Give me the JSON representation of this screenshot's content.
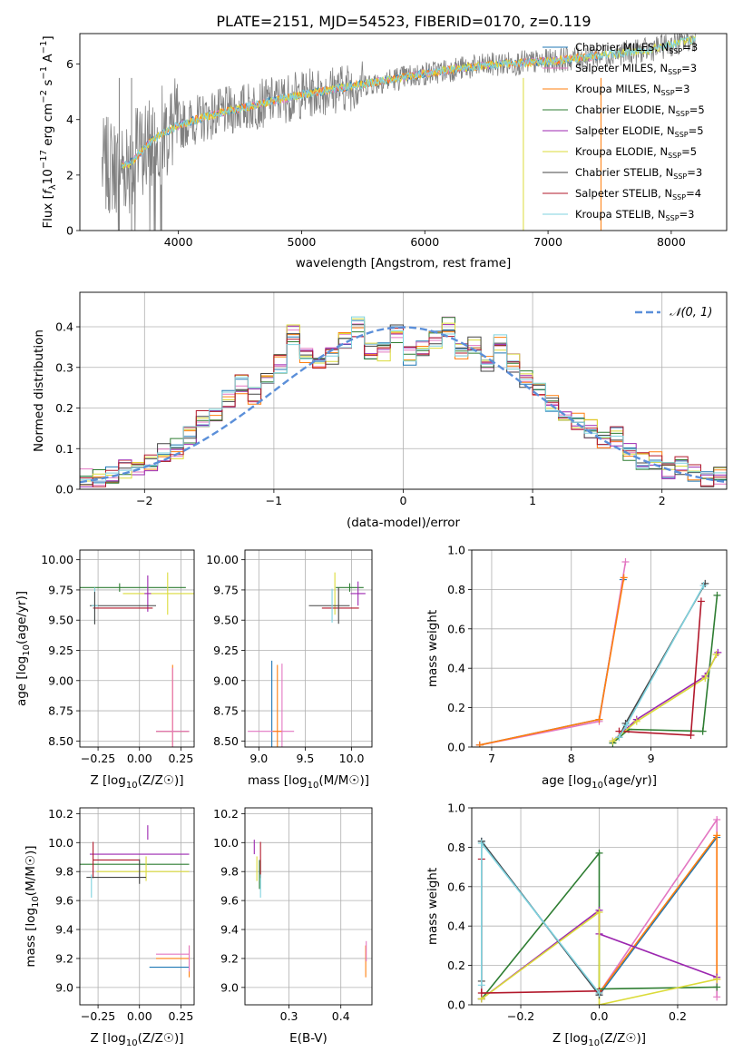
{
  "figure_title": "PLATE=2151, MJD=54523, FIBERID=0170, z=0.119",
  "colors": {
    "chabrier_miles": "#1f77b4",
    "salpeter_miles": "#e377c2",
    "kroupa_miles": "#ff7f0e",
    "chabrier_elodie": "#2e7d32",
    "salpeter_elodie": "#9c27b0",
    "kroupa_elodie": "#dbdb3a",
    "chabrier_stelib": "#444444",
    "salpeter_stelib": "#b2182b",
    "kroupa_stelib": "#7fd3df",
    "data": "#808080",
    "normal": "#5b8fd9"
  },
  "chart_data": [
    {
      "id": "spectrum",
      "type": "line",
      "title": "PLATE=2151, MJD=54523, FIBERID=0170, z=0.119",
      "xlabel": "wavelength [Angstrom, rest frame]",
      "ylabel_parts": [
        "Flux [",
        "f",
        "λ",
        "10",
        "−17",
        " erg cm",
        "−2",
        " s",
        "−1",
        " A",
        "−1",
        "]"
      ],
      "xlim": [
        3200,
        8450
      ],
      "ylim": [
        0,
        7.1
      ],
      "xticks": [
        4000,
        5000,
        6000,
        7000,
        8000
      ],
      "yticks": [
        0,
        2,
        4,
        6
      ],
      "legend": [
        {
          "text": "Chabrier MILES, N",
          "sub": "SSP",
          "tail": "=3"
        },
        {
          "text": "Salpeter MILES, N",
          "sub": "SSP",
          "tail": "=3"
        },
        {
          "text": "Kroupa MILES, N",
          "sub": "SSP",
          "tail": "=3"
        },
        {
          "text": "Chabrier ELODIE, N",
          "sub": "SSP",
          "tail": "=5"
        },
        {
          "text": "Salpeter ELODIE, N",
          "sub": "SSP",
          "tail": "=5"
        },
        {
          "text": "Kroupa ELODIE, N",
          "sub": "SSP",
          "tail": "=5"
        },
        {
          "text": "Chabrier STELIB, N",
          "sub": "SSP",
          "tail": "=3"
        },
        {
          "text": "Salpeter STELIB, N",
          "sub": "SSP",
          "tail": "=4"
        },
        {
          "text": "Kroupa STELIB, N",
          "sub": "SSP",
          "tail": "=3"
        }
      ],
      "data_trend": {
        "x": [
          3400,
          3600,
          3800,
          4000,
          4300,
          4600,
          5000,
          5400,
          5800,
          6200,
          6600,
          7000,
          7400,
          7800,
          8200
        ],
        "y": [
          2.3,
          2.4,
          3.3,
          3.8,
          4.2,
          4.5,
          4.9,
          5.2,
          5.5,
          5.8,
          6.0,
          6.1,
          6.3,
          6.5,
          6.9
        ]
      }
    },
    {
      "id": "residuals",
      "type": "line",
      "xlabel": "(data-model)/error",
      "ylabel": "Normed distribution",
      "xlim": [
        -2.5,
        2.5
      ],
      "ylim": [
        0,
        0.485
      ],
      "xticks": [
        -2,
        -1,
        0,
        1,
        2
      ],
      "xtick_labels": [
        "−2",
        "−1",
        "0",
        "1",
        "2"
      ],
      "yticks": [
        0,
        0.1,
        0.2,
        0.3,
        0.4
      ],
      "ytick_labels": [
        "0.0",
        "0.1",
        "0.2",
        "0.3",
        "0.4"
      ],
      "legend": "𝒩(0, 1)",
      "hist_base": [
        0.03,
        0.03,
        0.04,
        0.05,
        0.06,
        0.07,
        0.09,
        0.1,
        0.13,
        0.17,
        0.19,
        0.22,
        0.26,
        0.23,
        0.28,
        0.31,
        0.38,
        0.33,
        0.31,
        0.33,
        0.37,
        0.4,
        0.34,
        0.34,
        0.38,
        0.33,
        0.34,
        0.37,
        0.4,
        0.34,
        0.35,
        0.31,
        0.36,
        0.31,
        0.27,
        0.25,
        0.21,
        0.18,
        0.17,
        0.15,
        0.12,
        0.13,
        0.09,
        0.07,
        0.07,
        0.05,
        0.06,
        0.04,
        0.03,
        0.03
      ]
    },
    {
      "id": "age_vs_Z",
      "type": "scatter",
      "xlabel": "Z [log10(Z/Z☉)]",
      "ylabel": "age [log10(age/yr)]",
      "xlim": [
        -0.36,
        0.33
      ],
      "ylim": [
        8.45,
        10.08
      ],
      "xticks": [
        -0.25,
        0.0,
        0.25
      ],
      "xtick_labels": [
        "−0.25",
        "0.00",
        "0.25"
      ],
      "yticks": [
        8.5,
        8.75,
        9.0,
        9.25,
        9.5,
        9.75,
        10.0
      ],
      "ytick_labels": [
        "8.50",
        "8.75",
        "9.00",
        "9.25",
        "9.50",
        "9.75",
        "10.00"
      ],
      "points": [
        {
          "s": "chabrier_miles",
          "x": 0.2,
          "y": 8.58,
          "ex": 0.1,
          "ey": 0.0
        },
        {
          "s": "kroupa_miles",
          "x": 0.2,
          "y": 8.58,
          "ex": 0.1,
          "ey": 1.1
        },
        {
          "s": "salpeter_miles",
          "x": 0.2,
          "y": 8.58,
          "ex": 0.1,
          "ey": 1.05
        },
        {
          "s": "chabrier_elodie",
          "x": -0.12,
          "y": 9.77,
          "ex": 0.4,
          "ey": 0.07
        },
        {
          "s": "kroupa_elodie",
          "x": 0.17,
          "y": 9.72,
          "ex": 0.27,
          "ey": 0.35
        },
        {
          "s": "salpeter_elodie",
          "x": 0.05,
          "y": 9.72,
          "ex": 0.02,
          "ey": 0.3
        },
        {
          "s": "chabrier_stelib",
          "x": -0.1,
          "y": 9.62,
          "ex": 0.2,
          "ey": 0.0
        },
        {
          "s": "salpeter_stelib",
          "x": -0.1,
          "y": 9.6,
          "ex": 0.18,
          "ey": 0.0
        },
        {
          "s": "kroupa_stelib",
          "x": -0.27,
          "y": 9.62,
          "ex": 0.02,
          "ey": 0.3
        },
        {
          "s": "chabrier_stelib",
          "x": -0.27,
          "y": 9.6,
          "ex": 0.0,
          "ey": 0.27
        }
      ]
    },
    {
      "id": "age_vs_mass",
      "type": "scatter",
      "xlabel": "mass [log10(M/M☉)]",
      "ylabel": "",
      "xlim": [
        8.85,
        10.22
      ],
      "ylim": [
        8.45,
        10.08
      ],
      "xticks": [
        9.0,
        9.5,
        10.0
      ],
      "xtick_labels": [
        "9.0",
        "9.5",
        "10.0"
      ],
      "yticks": [
        8.5,
        8.75,
        9.0,
        9.25,
        9.5,
        9.75,
        10.0
      ],
      "ytick_labels": [
        "8.50",
        "8.75",
        "9.00",
        "9.25",
        "9.50",
        "9.75",
        "10.00"
      ],
      "points": [
        {
          "s": "chabrier_miles",
          "x": 9.14,
          "y": 8.58,
          "ex": 0.0,
          "ey": 1.17
        },
        {
          "s": "salpeter_miles",
          "x": 9.13,
          "y": 8.58,
          "ex": 0.25,
          "ey": 0.0
        },
        {
          "s": "kroupa_miles",
          "x": 9.2,
          "y": 8.58,
          "ex": 0.05,
          "ey": 1.1
        },
        {
          "s": "salpeter_miles",
          "x": 9.25,
          "y": 8.58,
          "ex": 0.0,
          "ey": 1.12
        },
        {
          "s": "chabrier_elodie",
          "x": 9.98,
          "y": 9.77,
          "ex": 0.15,
          "ey": 0.07
        },
        {
          "s": "salpeter_elodie",
          "x": 10.07,
          "y": 9.72,
          "ex": 0.08,
          "ey": 0.2
        },
        {
          "s": "kroupa_elodie",
          "x": 9.82,
          "y": 9.72,
          "ex": 0.0,
          "ey": 0.35
        },
        {
          "s": "chabrier_stelib",
          "x": 9.76,
          "y": 9.62,
          "ex": 0.22,
          "ey": 0.0
        },
        {
          "s": "salpeter_stelib",
          "x": 9.88,
          "y": 9.6,
          "ex": 0.2,
          "ey": 0.0
        },
        {
          "s": "kroupa_stelib",
          "x": 9.79,
          "y": 9.62,
          "ex": 0.0,
          "ey": 0.28
        },
        {
          "s": "chabrier_stelib",
          "x": 9.86,
          "y": 9.62,
          "ex": 0.0,
          "ey": 0.3
        }
      ]
    },
    {
      "id": "weight_vs_age",
      "type": "line",
      "xlabel": "age [log10(age/yr)]",
      "ylabel": "mass weight",
      "xlim": [
        6.75,
        9.95
      ],
      "ylim": [
        0,
        1.0
      ],
      "xticks": [
        7,
        8,
        9
      ],
      "xtick_labels": [
        "7",
        "8",
        "9"
      ],
      "yticks": [
        0,
        0.2,
        0.4,
        0.6,
        0.8,
        1.0
      ],
      "ytick_labels": [
        "0.0",
        "0.2",
        "0.4",
        "0.6",
        "0.8",
        "1.0"
      ],
      "series": [
        {
          "s": "chabrier_miles",
          "x": [
            6.85,
            8.35,
            8.65
          ],
          "y": [
            0.01,
            0.14,
            0.85
          ]
        },
        {
          "s": "salpeter_miles",
          "x": [
            6.85,
            8.35,
            8.68
          ],
          "y": [
            0.01,
            0.13,
            0.94
          ]
        },
        {
          "s": "kroupa_miles",
          "x": [
            6.85,
            8.35,
            8.66
          ],
          "y": [
            0.01,
            0.14,
            0.86
          ]
        },
        {
          "s": "chabrier_elodie",
          "x": [
            8.52,
            8.72,
            9.65,
            9.83
          ],
          "y": [
            0.02,
            0.09,
            0.08,
            0.77
          ]
        },
        {
          "s": "salpeter_elodie",
          "x": [
            8.52,
            8.82,
            9.68,
            9.84
          ],
          "y": [
            0.03,
            0.14,
            0.36,
            0.48
          ]
        },
        {
          "s": "kroupa_elodie",
          "x": [
            8.52,
            8.82,
            9.68,
            9.82
          ],
          "y": [
            0.03,
            0.13,
            0.35,
            0.47
          ]
        },
        {
          "s": "chabrier_stelib",
          "x": [
            8.6,
            8.68,
            9.68
          ],
          "y": [
            0.05,
            0.12,
            0.83
          ]
        },
        {
          "s": "salpeter_stelib",
          "x": [
            8.6,
            9.5,
            9.63
          ],
          "y": [
            0.08,
            0.06,
            0.74
          ]
        },
        {
          "s": "kroupa_stelib",
          "x": [
            8.6,
            8.69,
            9.66
          ],
          "y": [
            0.05,
            0.11,
            0.82
          ]
        }
      ]
    },
    {
      "id": "mass_vs_Z",
      "type": "scatter",
      "xlabel": "Z [log10(Z/Z☉)]",
      "ylabel": "mass [log10(M/M☉)]",
      "xlim": [
        -0.36,
        0.33
      ],
      "ylim": [
        8.88,
        10.24
      ],
      "xticks": [
        -0.25,
        0.0,
        0.25
      ],
      "xtick_labels": [
        "−0.25",
        "0.00",
        "0.25"
      ],
      "yticks": [
        9.0,
        9.2,
        9.4,
        9.6,
        9.8,
        10.0,
        10.2
      ],
      "ytick_labels": [
        "9.0",
        "9.2",
        "9.4",
        "9.6",
        "9.8",
        "10.0",
        "10.2"
      ],
      "points": [
        {
          "s": "chabrier_miles",
          "x": 0.18,
          "y": 9.14,
          "ex": 0.12,
          "ey": 0.0
        },
        {
          "s": "salpeter_miles",
          "x": 0.2,
          "y": 9.23,
          "ex": 0.1,
          "ey": 0.0
        },
        {
          "s": "kroupa_miles",
          "x": 0.2,
          "y": 9.2,
          "ex": 0.1,
          "ey": 0.0
        },
        {
          "s": "kroupa_miles",
          "x": 0.3,
          "y": 9.18,
          "ex": 0.0,
          "ey": 0.22
        },
        {
          "s": "salpeter_miles",
          "x": 0.3,
          "y": 9.2,
          "ex": 0.0,
          "ey": 0.18
        },
        {
          "s": "salpeter_elodie",
          "x": 0.0,
          "y": 9.92,
          "ex": 0.3,
          "ey": 0.0
        },
        {
          "s": "salpeter_elodie",
          "x": 0.05,
          "y": 10.07,
          "ex": 0.0,
          "ey": 0.1
        },
        {
          "s": "chabrier_elodie",
          "x": -0.05,
          "y": 9.85,
          "ex": 0.35,
          "ey": 0.0
        },
        {
          "s": "kroupa_elodie",
          "x": 0.02,
          "y": 9.8,
          "ex": 0.28,
          "ey": 0.0
        },
        {
          "s": "kroupa_elodie",
          "x": 0.04,
          "y": 9.82,
          "ex": 0.0,
          "ey": 0.17
        },
        {
          "s": "salpeter_stelib",
          "x": -0.14,
          "y": 9.88,
          "ex": 0.14,
          "ey": 0.0
        },
        {
          "s": "salpeter_stelib",
          "x": -0.28,
          "y": 9.88,
          "ex": 0.0,
          "ey": 0.25
        },
        {
          "s": "chabrier_stelib",
          "x": -0.14,
          "y": 9.76,
          "ex": 0.18,
          "ey": 0.0
        },
        {
          "s": "kroupa_stelib",
          "x": -0.29,
          "y": 9.7,
          "ex": 0.0,
          "ey": 0.16
        },
        {
          "s": "chabrier_stelib",
          "x": 0.0,
          "y": 9.8,
          "ex": 0.0,
          "ey": 0.17
        }
      ]
    },
    {
      "id": "mass_vs_ebv",
      "type": "scatter",
      "xlabel": "E(B-V)",
      "ylabel": "",
      "xlim": [
        0.215,
        0.46
      ],
      "ylim": [
        8.88,
        10.24
      ],
      "xticks": [
        0.3,
        0.4
      ],
      "xtick_labels": [
        "0.3",
        "0.4"
      ],
      "yticks": [
        9.0,
        9.2,
        9.4,
        9.6,
        9.8,
        10.0,
        10.2
      ],
      "ytick_labels": [
        "9.0",
        "9.2",
        "9.4",
        "9.6",
        "9.8",
        "10.0",
        "10.2"
      ],
      "points": [
        {
          "s": "salpeter_elodie",
          "x": 0.233,
          "y": 9.97,
          "ex": 0.0,
          "ey": 0.1
        },
        {
          "s": "kroupa_elodie",
          "x": 0.238,
          "y": 9.82,
          "ex": 0.0,
          "ey": 0.17
        },
        {
          "s": "salpeter_stelib",
          "x": 0.245,
          "y": 9.88,
          "ex": 0.0,
          "ey": 0.25
        },
        {
          "s": "chabrier_elodie",
          "x": 0.243,
          "y": 9.78,
          "ex": 0.0,
          "ey": 0.2
        },
        {
          "s": "kroupa_stelib",
          "x": 0.245,
          "y": 9.7,
          "ex": 0.0,
          "ey": 0.16
        },
        {
          "s": "kroupa_miles",
          "x": 0.448,
          "y": 9.18,
          "ex": 0.0,
          "ey": 0.22
        },
        {
          "s": "salpeter_miles",
          "x": 0.449,
          "y": 9.25,
          "ex": 0.0,
          "ey": 0.14
        }
      ]
    },
    {
      "id": "weight_vs_Z",
      "type": "line",
      "xlabel": "Z [log10(Z/Z☉)]",
      "ylabel": "mass weight",
      "xlim": [
        -0.325,
        0.325
      ],
      "ylim": [
        0,
        1.0
      ],
      "xticks": [
        -0.2,
        0.0,
        0.2
      ],
      "xtick_labels": [
        "−0.2",
        "0.0",
        "0.2"
      ],
      "yticks": [
        0,
        0.2,
        0.4,
        0.6,
        0.8,
        1.0
      ],
      "ytick_labels": [
        "0.0",
        "0.2",
        "0.4",
        "0.6",
        "0.8",
        "1.0"
      ],
      "series": [
        {
          "s": "chabrier_miles",
          "x": [
            -0.3,
            0.0,
            0.3
          ],
          "y": [
            0.83,
            0.05,
            0.85
          ]
        },
        {
          "s": "salpeter_miles",
          "x": [
            0.0,
            0.3,
            0.3
          ],
          "y": [
            0.06,
            0.94,
            0.04
          ]
        },
        {
          "s": "kroupa_miles",
          "x": [
            0.0,
            0.3,
            0.3
          ],
          "y": [
            0.06,
            0.86,
            0.13
          ]
        },
        {
          "s": "chabrier_elodie",
          "x": [
            -0.3,
            0.0,
            0.0,
            0.3
          ],
          "y": [
            0.03,
            0.77,
            0.08,
            0.09
          ]
        },
        {
          "s": "salpeter_elodie",
          "x": [
            -0.3,
            0.0,
            0.0,
            0.3
          ],
          "y": [
            0.03,
            0.48,
            0.36,
            0.14
          ]
        },
        {
          "s": "kroupa_elodie",
          "x": [
            -0.3,
            0.0,
            0.0,
            0.3
          ],
          "y": [
            0.03,
            0.47,
            0.0,
            0.13
          ]
        },
        {
          "s": "chabrier_stelib",
          "x": [
            -0.3,
            -0.3,
            0.0
          ],
          "y": [
            0.12,
            0.83,
            0.05
          ]
        },
        {
          "s": "salpeter_stelib",
          "x": [
            -0.3,
            -0.3,
            0.0
          ],
          "y": [
            0.74,
            0.06,
            0.07
          ]
        },
        {
          "s": "kroupa_stelib",
          "x": [
            -0.3,
            -0.3,
            0.0
          ],
          "y": [
            0.1,
            0.82,
            0.06
          ]
        }
      ]
    }
  ]
}
